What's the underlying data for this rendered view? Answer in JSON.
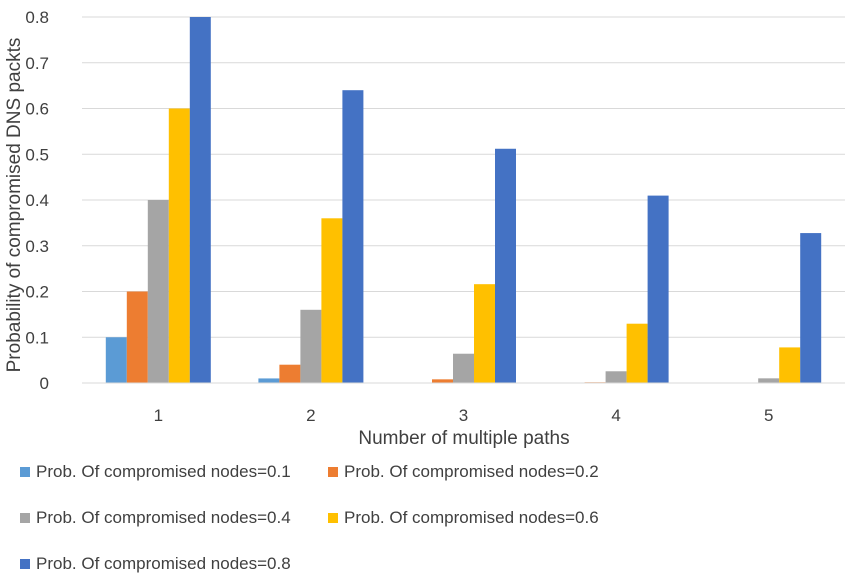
{
  "chart_data": {
    "type": "bar",
    "title": "",
    "xlabel": "Number of multiple paths",
    "ylabel": "Probability of compromised DNS packts",
    "categories": [
      "1",
      "2",
      "3",
      "4",
      "5"
    ],
    "ylim": [
      0,
      0.8
    ],
    "yticks": [
      "0",
      "0.1",
      "0.2",
      "0.3",
      "0.4",
      "0.5",
      "0.6",
      "0.7",
      "0.8"
    ],
    "ytick_values": [
      0,
      0.1,
      0.2,
      0.3,
      0.4,
      0.5,
      0.6,
      0.7,
      0.8
    ],
    "grid": true,
    "legend_position": "bottom",
    "series": [
      {
        "name": "Prob. Of compromised nodes=0.1",
        "color": "#5B9BD5",
        "values": [
          0.1,
          0.01,
          0.001,
          0.0001,
          1e-05
        ]
      },
      {
        "name": "Prob. Of compromised nodes=0.2",
        "color": "#ED7D31",
        "values": [
          0.2,
          0.04,
          0.008,
          0.0016,
          0.0003
        ]
      },
      {
        "name": "Prob. Of compromised nodes=0.4",
        "color": "#A5A5A5",
        "values": [
          0.4,
          0.16,
          0.064,
          0.0256,
          0.0102
        ]
      },
      {
        "name": "Prob. Of compromised nodes=0.6",
        "color": "#FFC000",
        "values": [
          0.6,
          0.36,
          0.216,
          0.1296,
          0.0778
        ]
      },
      {
        "name": "Prob. Of compromised nodes=0.8",
        "color": "#4472C4",
        "values": [
          0.8,
          0.64,
          0.512,
          0.4096,
          0.3277
        ]
      }
    ]
  }
}
